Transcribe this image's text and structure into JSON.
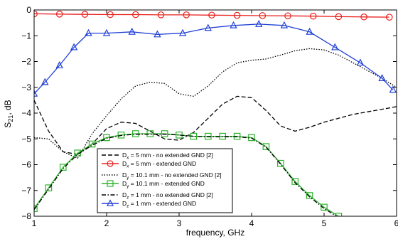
{
  "chart_data": {
    "type": "line",
    "xlabel": "frequency, GHz",
    "ylabel_main": "S",
    "ylabel_sub": "21",
    "ylabel_rest": ", dB",
    "xlim": [
      1,
      6
    ],
    "ylim": [
      -8,
      0
    ],
    "xticks": [
      1,
      2,
      3,
      4,
      5,
      6
    ],
    "yticks": [
      0,
      -1,
      -2,
      -3,
      -4,
      -5,
      -6,
      -7,
      -8
    ],
    "ytick_labels": [
      "0",
      "−1",
      "−2",
      "−3",
      "−4",
      "−5",
      "−6",
      "−7",
      "−8"
    ],
    "grid": false,
    "legend_position": "bottom-center",
    "series": [
      {
        "name": "D_x = 5 mm - no extended GND [2]",
        "label_main": "D",
        "label_sub": "x",
        "label_rest": " = 5 mm - no extended GND [2]",
        "color": "#000000",
        "style": "dashed",
        "marker": "none",
        "x": [
          1.0,
          1.2,
          1.4,
          1.6,
          1.8,
          2.0,
          2.2,
          2.4,
          2.6,
          2.8,
          3.0,
          3.2,
          3.4,
          3.6,
          3.8,
          4.0,
          4.2,
          4.4,
          4.6,
          4.8,
          5.0,
          5.2,
          5.4,
          5.6,
          5.8,
          6.0
        ],
        "y": [
          -3.5,
          -4.7,
          -5.5,
          -5.6,
          -5.2,
          -4.6,
          -4.35,
          -4.4,
          -4.7,
          -5.0,
          -5.05,
          -4.75,
          -4.2,
          -3.65,
          -3.35,
          -3.4,
          -3.9,
          -4.5,
          -4.7,
          -4.55,
          -4.35,
          -4.2,
          -4.05,
          -3.95,
          -3.85,
          -3.75
        ]
      },
      {
        "name": "D_x = 5 mm - extended GND",
        "label_main": "D",
        "label_sub": "x",
        "label_rest": " = 5 mm - extended GND",
        "color": "#e8201c",
        "style": "solid",
        "marker": "circle",
        "x": [
          1.0,
          1.35,
          1.7,
          2.05,
          2.4,
          2.75,
          3.1,
          3.45,
          3.8,
          4.15,
          4.5,
          4.85,
          5.2,
          5.55,
          5.9
        ],
        "y": [
          -0.15,
          -0.16,
          -0.17,
          -0.18,
          -0.18,
          -0.19,
          -0.19,
          -0.2,
          -0.21,
          -0.22,
          -0.23,
          -0.24,
          -0.26,
          -0.27,
          -0.28
        ]
      },
      {
        "name": "D_y = 10.1 mm - no extended GND [2]",
        "label_main": "D",
        "label_sub": "y",
        "label_rest": " = 10.1 mm - no extended GND [2]",
        "color": "#000000",
        "style": "dotted",
        "marker": "none",
        "x": [
          1.0,
          1.2,
          1.4,
          1.6,
          1.8,
          2.0,
          2.2,
          2.4,
          2.6,
          2.8,
          3.0,
          3.2,
          3.4,
          3.6,
          3.8,
          4.0,
          4.2,
          4.4,
          4.6,
          4.8,
          5.0,
          5.2,
          5.4,
          5.6,
          5.8,
          6.0
        ],
        "y": [
          -4.95,
          -5.0,
          -5.5,
          -5.75,
          -4.8,
          -4.1,
          -3.45,
          -2.95,
          -2.8,
          -2.85,
          -3.25,
          -3.35,
          -2.95,
          -2.4,
          -2.05,
          -1.95,
          -1.9,
          -1.75,
          -1.58,
          -1.5,
          -1.55,
          -1.75,
          -2.05,
          -2.35,
          -2.65,
          -3.0
        ]
      },
      {
        "name": "D_y = 10.1 mm - extended GND",
        "label_main": "D",
        "label_sub": "y",
        "label_rest": " = 10.1 mm - extended GND",
        "color": "#2db32d",
        "style": "solid",
        "marker": "square",
        "x": [
          1.0,
          1.2,
          1.4,
          1.6,
          1.8,
          2.0,
          2.2,
          2.4,
          2.6,
          2.8,
          3.0,
          3.2,
          3.4,
          3.6,
          3.8,
          4.0,
          4.2,
          4.4,
          4.6,
          4.8,
          5.0,
          5.2,
          5.4,
          5.6
        ],
        "y": [
          -7.7,
          -6.9,
          -6.1,
          -5.55,
          -5.2,
          -4.95,
          -4.85,
          -4.8,
          -4.8,
          -4.8,
          -4.85,
          -4.9,
          -4.9,
          -4.9,
          -4.9,
          -4.95,
          -5.3,
          -5.95,
          -6.65,
          -7.2,
          -7.65,
          -8.0,
          -8.3,
          -8.6
        ]
      },
      {
        "name": "D_z = 1 mm - no extended GND [2]",
        "label_main": "D",
        "label_sub": "z",
        "label_rest": " = 1 mm - no extended GND [2]",
        "color": "#000000",
        "style": "dashdot",
        "marker": "none",
        "x": [
          1.0,
          1.2,
          1.4,
          1.6,
          1.8,
          2.0,
          2.2,
          2.4,
          2.6,
          2.8,
          3.0,
          3.2,
          3.4,
          3.6,
          3.8,
          4.0,
          4.2,
          4.4,
          4.6,
          4.8,
          5.0,
          5.2,
          5.4,
          5.6
        ],
        "y": [
          -7.75,
          -6.95,
          -6.15,
          -5.6,
          -5.25,
          -4.98,
          -4.87,
          -4.82,
          -4.82,
          -4.82,
          -4.85,
          -4.9,
          -4.92,
          -4.92,
          -4.92,
          -4.97,
          -5.32,
          -5.98,
          -6.7,
          -7.25,
          -7.7,
          -8.05,
          -8.35,
          -8.65
        ]
      },
      {
        "name": "D_z = 1 mm - extended GND",
        "label_main": "D",
        "label_sub": "z",
        "label_rest": " = 1 mm - extended GND",
        "color": "#1f3fd6",
        "style": "solid",
        "marker": "triangle",
        "x": [
          1.0,
          1.15,
          1.35,
          1.55,
          1.75,
          2.0,
          2.35,
          2.7,
          3.05,
          3.4,
          3.75,
          4.1,
          4.45,
          4.8,
          5.15,
          5.5,
          5.8,
          5.95
        ],
        "y": [
          -3.25,
          -2.8,
          -2.15,
          -1.45,
          -0.9,
          -0.9,
          -0.85,
          -0.95,
          -0.9,
          -0.7,
          -0.6,
          -0.55,
          -0.6,
          -0.85,
          -1.45,
          -2.05,
          -2.65,
          -3.1
        ]
      }
    ]
  }
}
